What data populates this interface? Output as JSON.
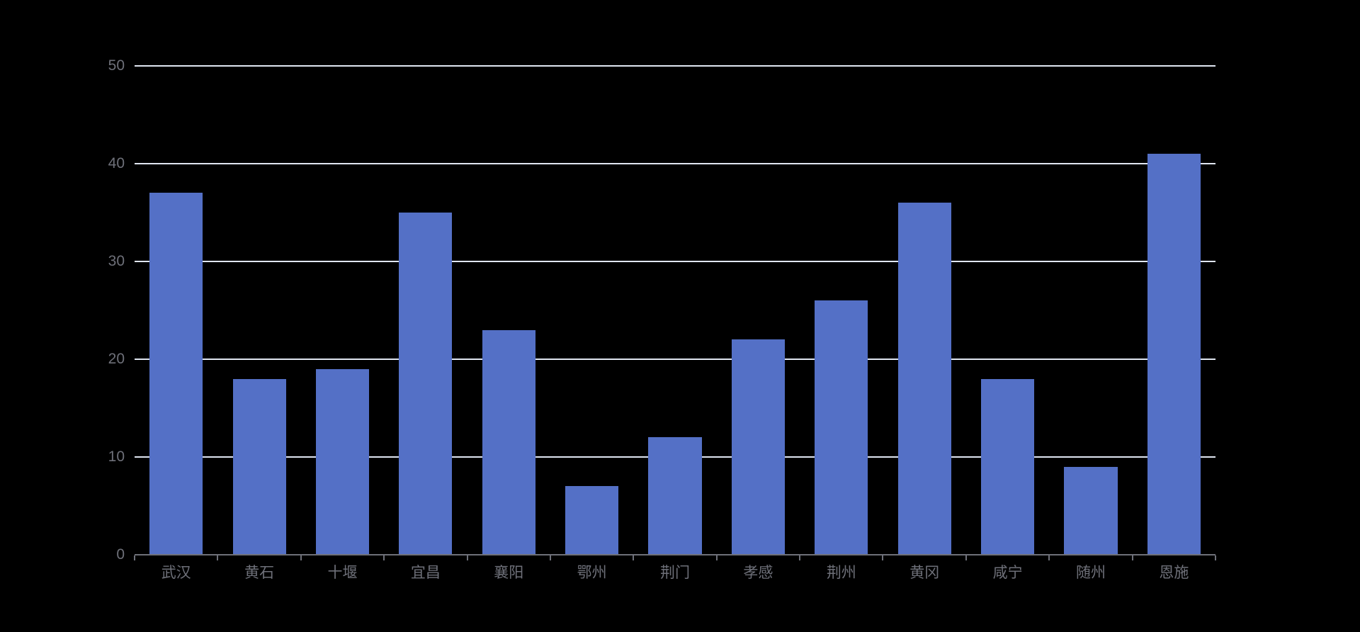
{
  "chart_data": {
    "type": "bar",
    "title": "",
    "xlabel": "",
    "ylabel": "",
    "categories": [
      "武汉",
      "黄石",
      "十堰",
      "宜昌",
      "襄阳",
      "鄂州",
      "荆门",
      "孝感",
      "荆州",
      "黄冈",
      "咸宁",
      "随州",
      "恩施"
    ],
    "values": [
      37,
      18,
      19,
      35,
      23,
      7,
      12,
      22,
      26,
      36,
      18,
      9,
      41
    ],
    "ylim": [
      0,
      50
    ],
    "yticks": [
      0,
      10,
      20,
      30,
      40,
      50
    ],
    "grid": true,
    "legend": false,
    "colors": {
      "bar": "#5470C6",
      "gridline": "#E0E6F1",
      "axis_line": "#6E7079",
      "tick": "#6E7079",
      "label": "#6E7079",
      "background": "#000000"
    }
  }
}
